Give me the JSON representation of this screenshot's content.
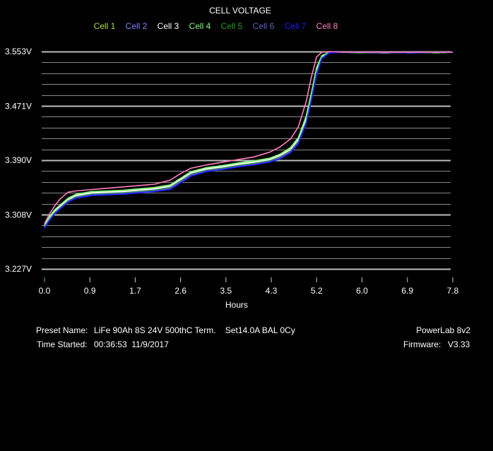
{
  "chart_data": {
    "type": "line",
    "title": "CELL VOLTAGE",
    "xlabel": "Hours",
    "ylabel": "",
    "xlim": [
      0.0,
      7.8
    ],
    "ylim": [
      3.227,
      3.553
    ],
    "x_ticks": [
      "0.0",
      "0.9",
      "1.7",
      "2.6",
      "3.5",
      "4.3",
      "5.2",
      "6.0",
      "6.9",
      "7.8"
    ],
    "y_ticks": [
      "3.553V",
      "3.471V",
      "3.390V",
      "3.308V",
      "3.227V"
    ],
    "y_tick_values": [
      3.553,
      3.471,
      3.39,
      3.308,
      3.227
    ],
    "grid": true,
    "legend_position": "top",
    "series": [
      {
        "name": "Cell 1",
        "color": "#a8e040",
        "x": [
          0.0,
          0.1,
          0.2,
          0.3,
          0.45,
          0.6,
          0.9,
          1.2,
          1.5,
          1.8,
          2.1,
          2.4,
          2.6,
          2.8,
          3.1,
          3.4,
          3.7,
          4.0,
          4.3,
          4.5,
          4.7,
          4.85,
          5.0,
          5.1,
          5.2,
          5.3,
          5.45,
          5.7,
          6.0,
          6.5,
          7.0,
          7.5,
          7.8
        ],
        "y": [
          3.292,
          3.305,
          3.315,
          3.322,
          3.332,
          3.338,
          3.342,
          3.343,
          3.344,
          3.346,
          3.348,
          3.352,
          3.362,
          3.372,
          3.378,
          3.381,
          3.385,
          3.388,
          3.393,
          3.398,
          3.408,
          3.423,
          3.455,
          3.49,
          3.528,
          3.546,
          3.552,
          3.552,
          3.552,
          3.551,
          3.552,
          3.551,
          3.552
        ]
      },
      {
        "name": "Cell 2",
        "color": "#8080ff",
        "x": [
          0.0,
          0.1,
          0.2,
          0.3,
          0.45,
          0.6,
          0.9,
          1.2,
          1.5,
          1.8,
          2.1,
          2.4,
          2.6,
          2.8,
          3.1,
          3.4,
          3.7,
          4.0,
          4.3,
          4.5,
          4.7,
          4.85,
          5.0,
          5.1,
          5.2,
          5.3,
          5.45,
          5.7,
          6.0,
          6.5,
          7.0,
          7.5,
          7.8
        ],
        "y": [
          3.29,
          3.303,
          3.313,
          3.32,
          3.33,
          3.336,
          3.34,
          3.341,
          3.342,
          3.344,
          3.346,
          3.35,
          3.36,
          3.37,
          3.376,
          3.379,
          3.383,
          3.386,
          3.39,
          3.396,
          3.405,
          3.42,
          3.45,
          3.485,
          3.524,
          3.545,
          3.552,
          3.552,
          3.551,
          3.552,
          3.551,
          3.552,
          3.552
        ]
      },
      {
        "name": "Cell 3",
        "color": "#ffffff",
        "x": [
          0.0,
          0.1,
          0.2,
          0.3,
          0.45,
          0.6,
          0.9,
          1.2,
          1.5,
          1.8,
          2.1,
          2.4,
          2.6,
          2.8,
          3.1,
          3.4,
          3.7,
          4.0,
          4.3,
          4.5,
          4.7,
          4.85,
          5.0,
          5.1,
          5.2,
          5.3,
          5.45,
          5.7,
          6.0,
          6.5,
          7.0,
          7.5,
          7.8
        ],
        "y": [
          3.291,
          3.304,
          3.314,
          3.321,
          3.331,
          3.337,
          3.341,
          3.342,
          3.343,
          3.345,
          3.347,
          3.351,
          3.361,
          3.371,
          3.377,
          3.38,
          3.384,
          3.387,
          3.391,
          3.397,
          3.406,
          3.421,
          3.452,
          3.487,
          3.526,
          3.546,
          3.552,
          3.552,
          3.552,
          3.551,
          3.552,
          3.551,
          3.552
        ]
      },
      {
        "name": "Cell 4",
        "color": "#80ff80",
        "x": [
          0.0,
          0.1,
          0.2,
          0.3,
          0.45,
          0.6,
          0.9,
          1.2,
          1.5,
          1.8,
          2.1,
          2.4,
          2.6,
          2.8,
          3.1,
          3.4,
          3.7,
          4.0,
          4.3,
          4.5,
          4.7,
          4.85,
          5.0,
          5.1,
          5.2,
          5.3,
          5.45,
          5.7,
          6.0,
          6.5,
          7.0,
          7.5,
          7.8
        ],
        "y": [
          3.293,
          3.306,
          3.316,
          3.323,
          3.333,
          3.339,
          3.343,
          3.344,
          3.345,
          3.347,
          3.349,
          3.353,
          3.363,
          3.373,
          3.379,
          3.382,
          3.386,
          3.389,
          3.393,
          3.399,
          3.409,
          3.424,
          3.456,
          3.491,
          3.529,
          3.547,
          3.552,
          3.552,
          3.552,
          3.552,
          3.551,
          3.552,
          3.552
        ]
      },
      {
        "name": "Cell 5",
        "color": "#20a020",
        "x": [
          0.0,
          0.1,
          0.2,
          0.3,
          0.45,
          0.6,
          0.9,
          1.2,
          1.5,
          1.8,
          2.1,
          2.4,
          2.6,
          2.8,
          3.1,
          3.4,
          3.7,
          4.0,
          4.3,
          4.5,
          4.7,
          4.85,
          5.0,
          5.1,
          5.2,
          5.3,
          5.45,
          5.7,
          6.0,
          6.5,
          7.0,
          7.5,
          7.8
        ],
        "y": [
          3.29,
          3.302,
          3.312,
          3.319,
          3.329,
          3.335,
          3.339,
          3.34,
          3.341,
          3.343,
          3.345,
          3.349,
          3.359,
          3.369,
          3.375,
          3.378,
          3.382,
          3.385,
          3.389,
          3.395,
          3.404,
          3.418,
          3.448,
          3.483,
          3.522,
          3.544,
          3.552,
          3.552,
          3.551,
          3.552,
          3.552,
          3.551,
          3.552
        ]
      },
      {
        "name": "Cell 6",
        "color": "#6060c0",
        "x": [
          0.0,
          0.1,
          0.2,
          0.3,
          0.45,
          0.6,
          0.9,
          1.2,
          1.5,
          1.8,
          2.1,
          2.4,
          2.6,
          2.8,
          3.1,
          3.4,
          3.7,
          4.0,
          4.3,
          4.5,
          4.7,
          4.85,
          5.0,
          5.1,
          5.2,
          5.3,
          5.45,
          5.7,
          6.0,
          6.5,
          7.0,
          7.5,
          7.8
        ],
        "y": [
          3.289,
          3.301,
          3.311,
          3.318,
          3.328,
          3.334,
          3.338,
          3.339,
          3.34,
          3.342,
          3.344,
          3.348,
          3.358,
          3.368,
          3.374,
          3.377,
          3.381,
          3.384,
          3.388,
          3.394,
          3.403,
          3.417,
          3.446,
          3.481,
          3.52,
          3.543,
          3.552,
          3.552,
          3.552,
          3.551,
          3.552,
          3.552,
          3.552
        ]
      },
      {
        "name": "Cell 7",
        "color": "#1a1aff",
        "x": [
          0.0,
          0.1,
          0.2,
          0.3,
          0.45,
          0.6,
          0.9,
          1.2,
          1.5,
          1.8,
          2.1,
          2.4,
          2.6,
          2.8,
          3.1,
          3.4,
          3.7,
          4.0,
          4.3,
          4.5,
          4.7,
          4.85,
          5.0,
          5.1,
          5.2,
          5.3,
          5.45,
          5.7,
          6.0,
          6.5,
          7.0,
          7.5,
          7.8
        ],
        "y": [
          3.288,
          3.3,
          3.31,
          3.317,
          3.327,
          3.333,
          3.337,
          3.338,
          3.339,
          3.341,
          3.343,
          3.346,
          3.356,
          3.366,
          3.373,
          3.376,
          3.38,
          3.383,
          3.387,
          3.392,
          3.401,
          3.415,
          3.444,
          3.479,
          3.518,
          3.542,
          3.551,
          3.552,
          3.552,
          3.552,
          3.551,
          3.552,
          3.552
        ]
      },
      {
        "name": "Cell 8",
        "color": "#ff80c0",
        "x": [
          0.0,
          0.1,
          0.2,
          0.3,
          0.45,
          0.6,
          0.9,
          1.2,
          1.5,
          1.8,
          2.1,
          2.4,
          2.6,
          2.8,
          3.1,
          3.4,
          3.7,
          4.0,
          4.3,
          4.5,
          4.7,
          4.85,
          5.0,
          5.1,
          5.2,
          5.3,
          5.45,
          5.7,
          6.0,
          6.5,
          7.0,
          7.5,
          7.8
        ],
        "y": [
          3.295,
          3.31,
          3.322,
          3.332,
          3.342,
          3.344,
          3.346,
          3.348,
          3.35,
          3.352,
          3.354,
          3.36,
          3.37,
          3.378,
          3.383,
          3.387,
          3.391,
          3.395,
          3.402,
          3.41,
          3.422,
          3.44,
          3.478,
          3.515,
          3.545,
          3.552,
          3.553,
          3.552,
          3.552,
          3.552,
          3.552,
          3.552,
          3.552
        ]
      }
    ]
  },
  "info": {
    "preset_label": "Preset Name:",
    "preset_value": "LiFe 90Ah 8S 24V 500thC Term.    Set14.0A BAL 0Cy",
    "time_label": "Time Started:",
    "time_value": "00:36:53  11/9/2017",
    "device": "PowerLab 8v2",
    "firmware_label": "Firmware:",
    "firmware_value": "V3.33"
  }
}
